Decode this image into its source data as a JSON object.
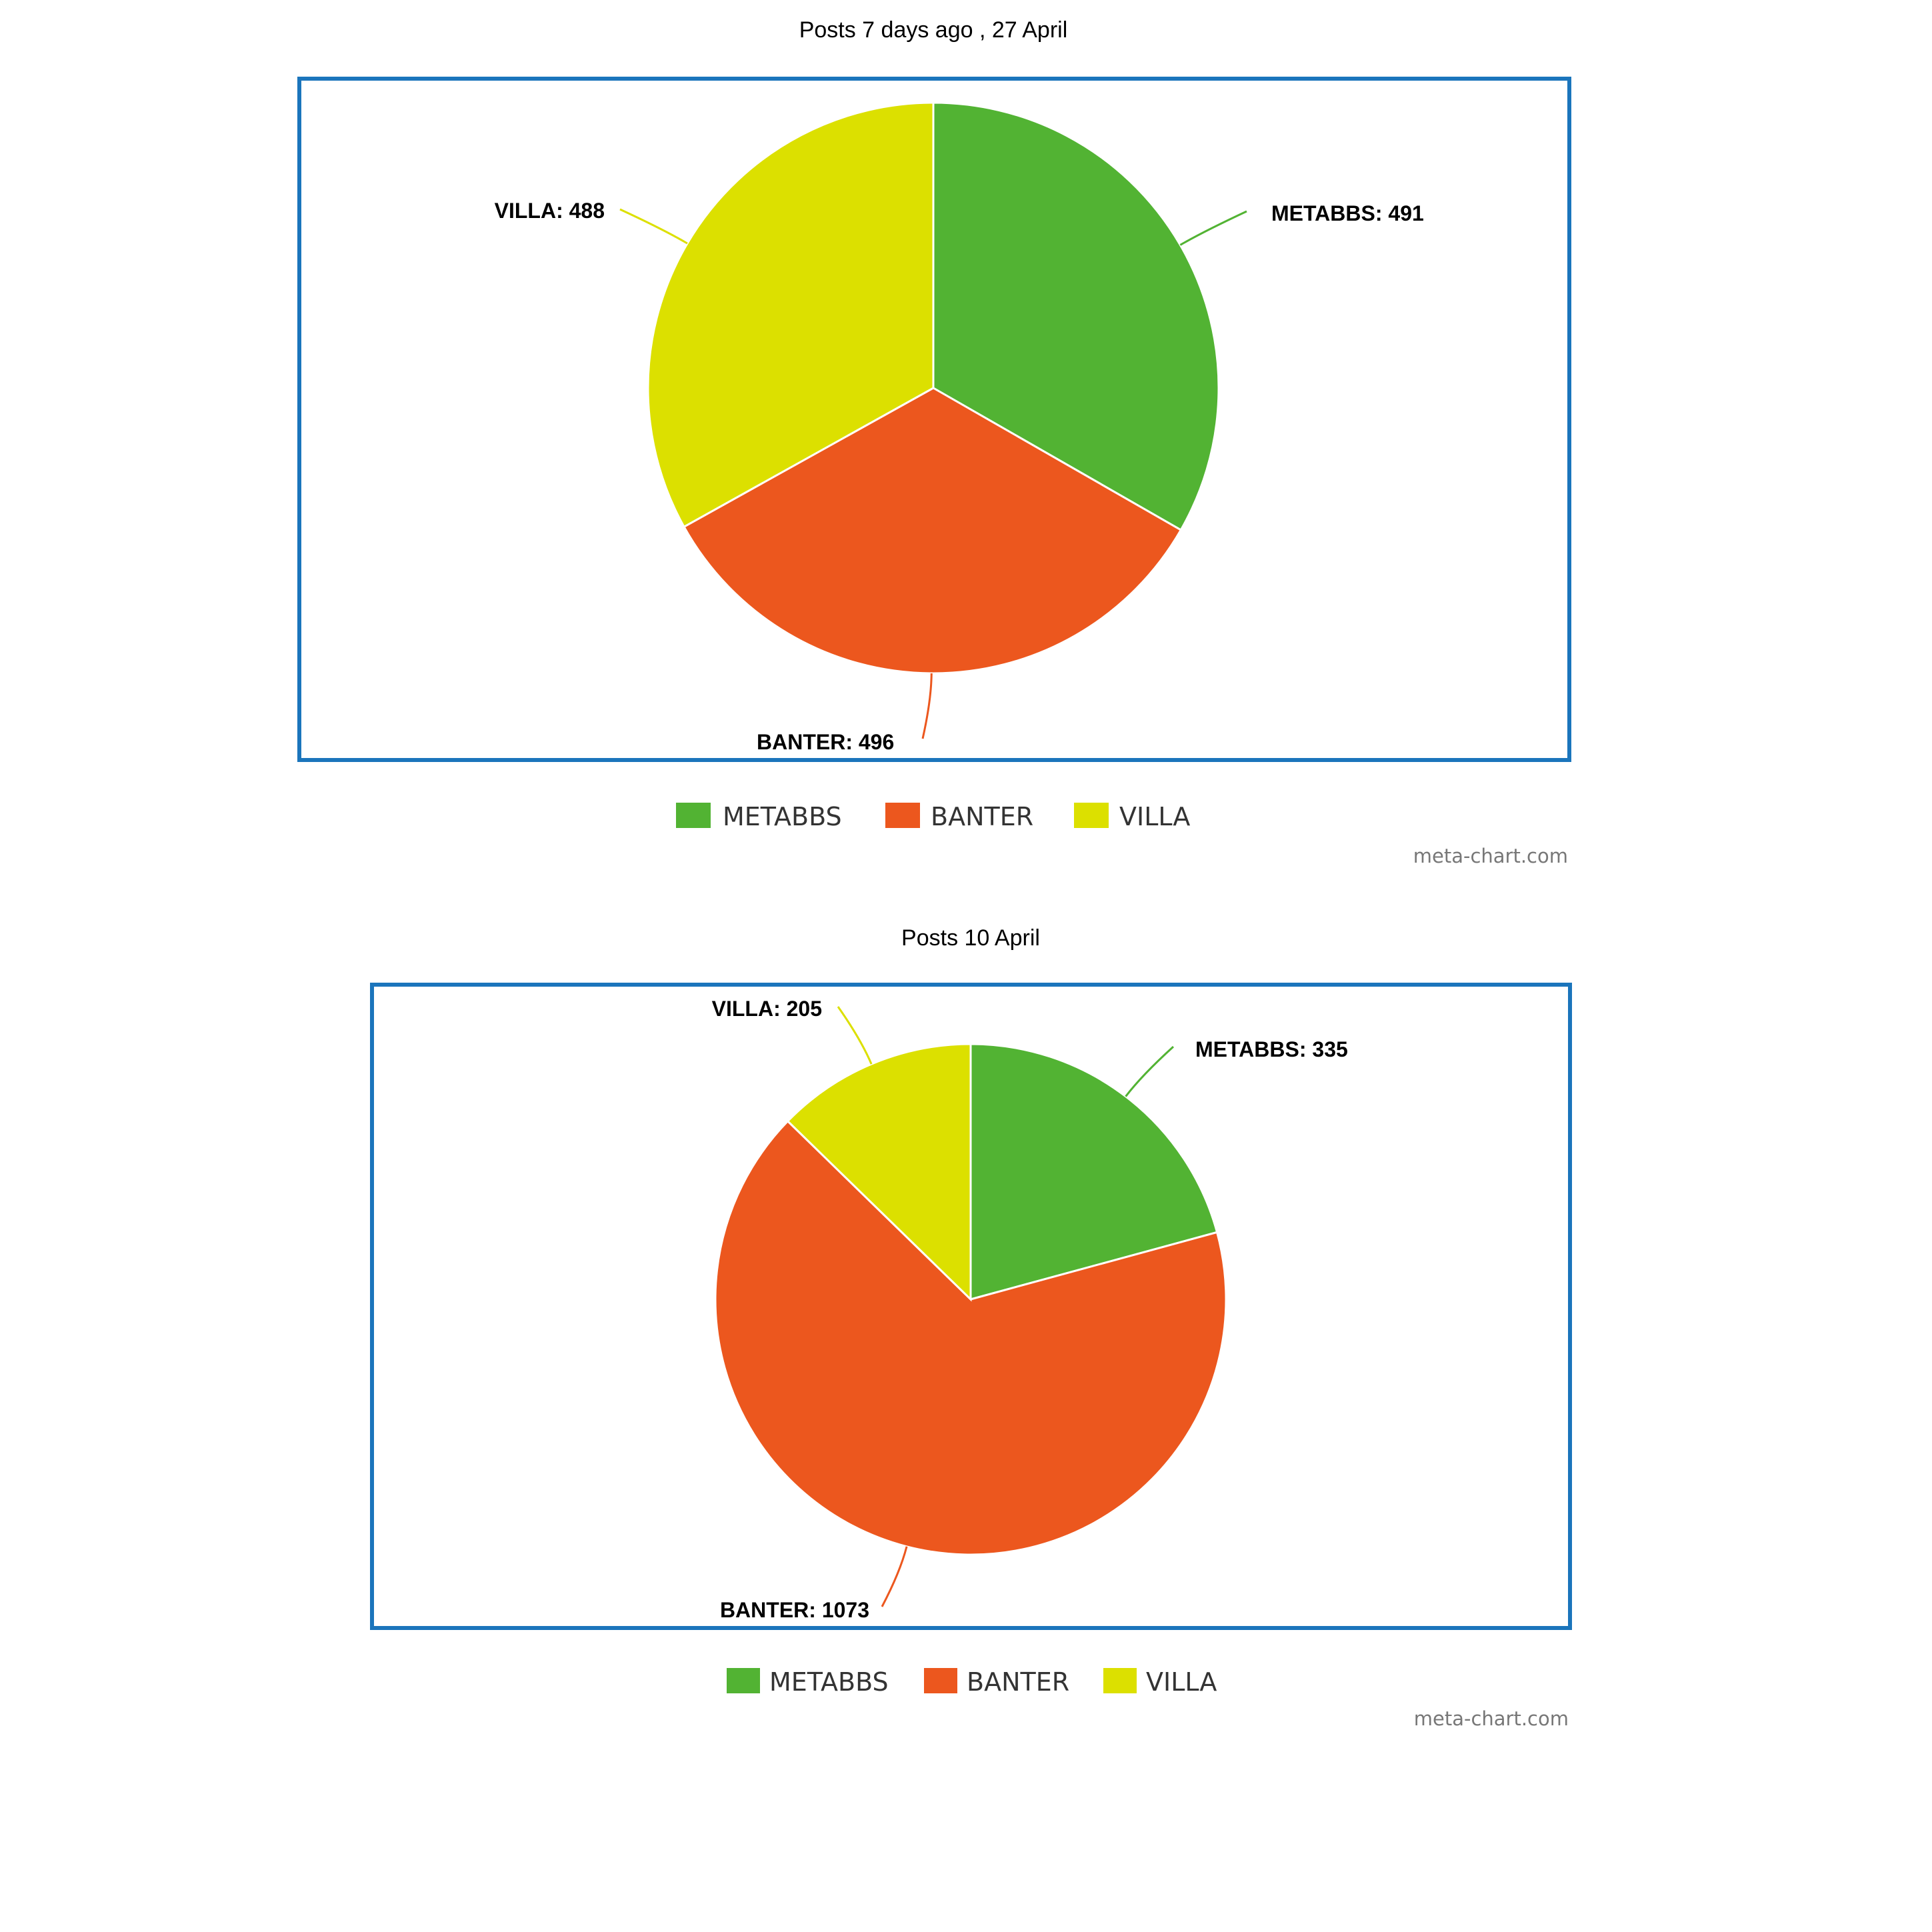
{
  "chart_data": [
    {
      "type": "pie",
      "title": "Posts 7 days ago , 27 April",
      "categories": [
        "METABBS",
        "BANTER",
        "VILLA"
      ],
      "values": [
        491,
        496,
        488
      ],
      "data_labels": [
        "METABBS: 491",
        "BANTER: 496",
        "VILLA: 488"
      ],
      "colors": [
        "#52b333",
        "#ec571e",
        "#dce000"
      ],
      "legend": "bottom",
      "credit": "meta-chart.com"
    },
    {
      "type": "pie",
      "title": "Posts 10 April",
      "categories": [
        "METABBS",
        "BANTER",
        "VILLA"
      ],
      "values": [
        335,
        1073,
        205
      ],
      "data_labels": [
        "METABBS: 335",
        "BANTER: 1073",
        "VILLA: 205"
      ],
      "colors": [
        "#52b333",
        "#ec571e",
        "#dce000"
      ],
      "legend": "bottom",
      "credit": "meta-chart.com"
    }
  ]
}
